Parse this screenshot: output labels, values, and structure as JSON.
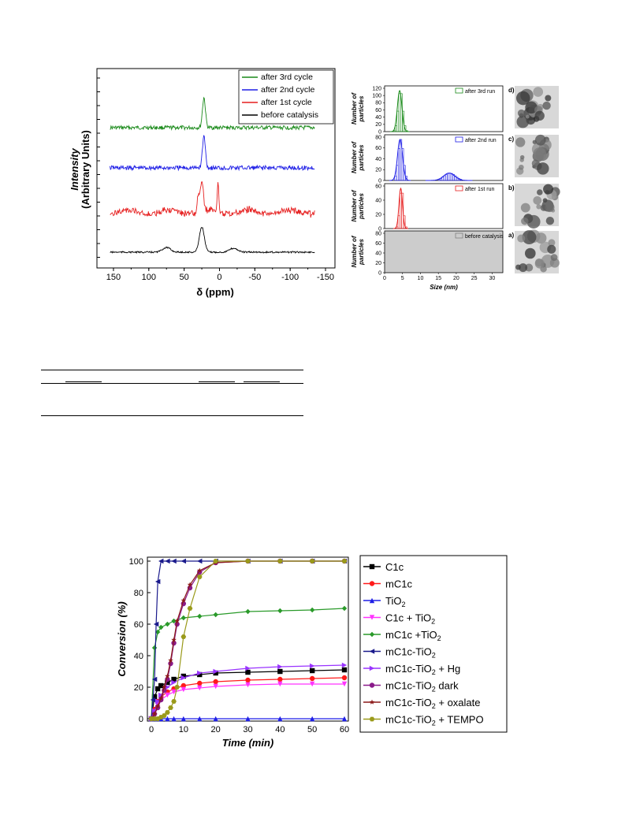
{
  "nmr_figure": {
    "xlabel": "δ (ppm)",
    "ylabel_line1": "Intensity",
    "ylabel_line2": "(Arbitrary Units)",
    "x_ticks": [
      "150",
      "100",
      "50",
      "0",
      "-50",
      "-100",
      "-150"
    ],
    "legend": [
      "after 3rd cycle",
      "after 2nd cycle",
      "after 1st cycle",
      "before catalysis"
    ],
    "colors": [
      "#1a8a1a",
      "#1f1fe6",
      "#e61f1f",
      "#000000"
    ]
  },
  "histogram_figure": {
    "ylabel": "Number of particles",
    "xlabel": "Size (nm)",
    "panels": [
      {
        "legend": "after 3rd run",
        "color": "#1a8a1a",
        "y_ticks": [
          "0",
          "20",
          "40",
          "60",
          "80",
          "100",
          "120"
        ],
        "letter": "d)"
      },
      {
        "legend": "after 2nd run",
        "color": "#1f1fe6",
        "y_ticks": [
          "0",
          "20",
          "40",
          "60",
          "80"
        ],
        "letter": "c)"
      },
      {
        "legend": "after 1st run",
        "color": "#e61f1f",
        "y_ticks": [
          "0",
          "20",
          "40",
          "60"
        ],
        "letter": "b)"
      },
      {
        "legend": "before catalysis",
        "color": "#808080",
        "y_ticks": [
          "0",
          "20",
          "40",
          "60",
          "80"
        ],
        "letter": "a)"
      }
    ],
    "x_ticks": [
      "0",
      "5",
      "10",
      "15",
      "20",
      "25",
      "30"
    ]
  },
  "chart_data": {
    "type": "line",
    "xlabel": "Time (min)",
    "ylabel": "Conversion (%)",
    "xlim": [
      0,
      60
    ],
    "ylim": [
      0,
      100
    ],
    "x_ticks": [
      "0",
      "10",
      "20",
      "30",
      "40",
      "50",
      "60"
    ],
    "y_ticks": [
      "0",
      "20",
      "40",
      "60",
      "80",
      "100"
    ],
    "series": [
      {
        "name": "C1c",
        "color": "#000000",
        "marker": "square",
        "x": [
          0,
          1,
          2,
          3,
          5,
          7,
          10,
          15,
          20,
          30,
          40,
          50,
          60
        ],
        "values": [
          0,
          14,
          19,
          21,
          23,
          25,
          27,
          28,
          29,
          29.5,
          30,
          30.5,
          31
        ]
      },
      {
        "name": "mC1c",
        "color": "#ff1a1a",
        "marker": "circle",
        "x": [
          0,
          1,
          2,
          3,
          5,
          7,
          10,
          15,
          20,
          30,
          40,
          50,
          60
        ],
        "values": [
          0,
          6,
          11,
          14,
          17,
          19,
          21,
          22.5,
          23.5,
          24.5,
          25,
          25.5,
          26
        ]
      },
      {
        "name": "TiO2",
        "color": "#1f1fe6",
        "marker": "triangle-up",
        "x": [
          0,
          1,
          2,
          3,
          5,
          7,
          10,
          15,
          20,
          30,
          40,
          50,
          60
        ],
        "values": [
          0,
          0,
          0,
          0,
          0,
          0,
          0,
          0,
          0,
          0,
          0,
          0,
          0
        ]
      },
      {
        "name": "C1c + TiO2",
        "color": "#ff33ff",
        "marker": "triangle-down",
        "x": [
          0,
          1,
          2,
          3,
          5,
          7,
          10,
          15,
          20,
          30,
          40,
          50,
          60
        ],
        "values": [
          0,
          4,
          9,
          12,
          15,
          17,
          18.5,
          19.5,
          20.5,
          21.5,
          22,
          22,
          22
        ]
      },
      {
        "name": "mC1c +TiO2",
        "color": "#2a9a2a",
        "marker": "diamond",
        "x": [
          0,
          1,
          2,
          3,
          5,
          7,
          10,
          15,
          20,
          30,
          40,
          50,
          60
        ],
        "values": [
          0,
          45,
          55,
          58,
          60,
          62,
          64,
          65,
          66,
          68,
          68.5,
          69,
          70
        ]
      },
      {
        "name": "mC1c-TiO2",
        "color": "#1a1a8c",
        "marker": "triangle-left",
        "x": [
          0,
          0.5,
          1,
          1.5,
          2,
          3,
          5,
          7,
          10,
          15,
          20,
          30,
          40,
          50,
          60
        ],
        "values": [
          0,
          12,
          25,
          60,
          87,
          100,
          100,
          100,
          100,
          100,
          100,
          100,
          100,
          100,
          100
        ]
      },
      {
        "name": "mC1c-TiO2 + Hg",
        "color": "#9933ff",
        "marker": "triangle-right",
        "x": [
          0,
          1,
          2,
          3,
          5,
          7,
          10,
          15,
          20,
          30,
          40,
          50,
          60
        ],
        "values": [
          0,
          5,
          11,
          15,
          20,
          23,
          26,
          29,
          30,
          32,
          33,
          33.5,
          34
        ]
      },
      {
        "name": "mC1c-TiO2 dark",
        "color": "#8a1a8a",
        "marker": "circle",
        "x": [
          0,
          1,
          2,
          3,
          4,
          5,
          6,
          7,
          8,
          10,
          12,
          15,
          20,
          30,
          40,
          50,
          60
        ],
        "values": [
          0,
          3,
          7,
          12,
          18,
          25,
          35,
          48,
          60,
          73,
          83,
          93,
          99,
          100,
          100,
          100,
          100
        ]
      },
      {
        "name": "mC1c-TiO2 + oxalate",
        "color": "#8c1a1a",
        "marker": "star",
        "x": [
          0,
          1,
          2,
          3,
          4,
          5,
          6,
          7,
          8,
          10,
          12,
          15,
          20,
          30,
          40,
          50,
          60
        ],
        "values": [
          0,
          3,
          8,
          13,
          20,
          27,
          37,
          50,
          62,
          75,
          85,
          94,
          99,
          100,
          100,
          100,
          100
        ]
      },
      {
        "name": "mC1c-TiO2 + TEMPO",
        "color": "#9a9a1a",
        "marker": "hexagon",
        "x": [
          0,
          1,
          2,
          3,
          4,
          5,
          6,
          7,
          8,
          10,
          12,
          15,
          20,
          30,
          40,
          50,
          60
        ],
        "values": [
          0,
          0,
          0,
          1,
          2,
          4,
          7,
          11,
          20,
          52,
          70,
          90,
          100,
          100,
          100,
          100,
          100
        ]
      }
    ],
    "legend": [
      "C1c",
      "mC1c",
      "TiO2",
      "C1c + TiO2",
      "mC1c +TiO2",
      "mC1c-TiO2",
      "mC1c-TiO2 + Hg",
      "mC1c-TiO2 dark",
      "mC1c-TiO2 + oxalate",
      "mC1c-TiO2 + TEMPO"
    ]
  }
}
